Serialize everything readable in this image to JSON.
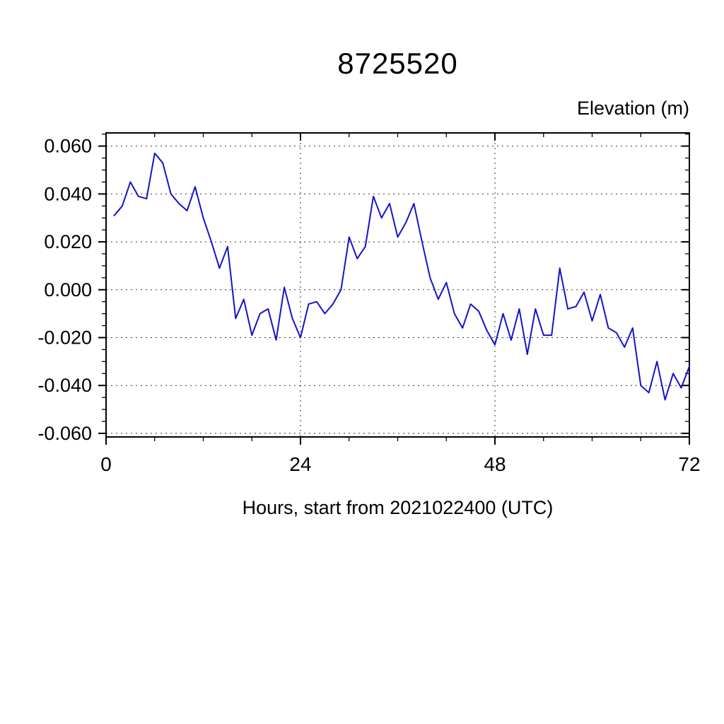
{
  "title": "8725520",
  "y_axis_unit": "Elevation (m)",
  "x_axis_title": "Hours, start from 2021022400 (UTC)",
  "chart_data": {
    "type": "line",
    "title": "8725520",
    "xlabel": "Hours, start from 2021022400 (UTC)",
    "ylabel": "Elevation (m)",
    "xlim": [
      0,
      72
    ],
    "ylim": [
      -0.0615,
      0.0655
    ],
    "grid": "dashed",
    "grid_color": "#000000",
    "grid_x_values": [
      24,
      48
    ],
    "grid_y_values": [
      0.06,
      0.04,
      0.02,
      0.0,
      -0.02,
      -0.04,
      -0.06
    ],
    "xticks": [
      {
        "value": 0,
        "label": "0"
      },
      {
        "value": 24,
        "label": "24"
      },
      {
        "value": 48,
        "label": "48"
      },
      {
        "value": 72,
        "label": "72"
      }
    ],
    "x_minor_step": 6,
    "yticks": [
      {
        "value": 0.06,
        "label": "0.060"
      },
      {
        "value": 0.04,
        "label": "0.040"
      },
      {
        "value": 0.02,
        "label": "0.020"
      },
      {
        "value": 0.0,
        "label": "0.000"
      },
      {
        "value": -0.02,
        "label": "-0.020"
      },
      {
        "value": -0.04,
        "label": "-0.040"
      },
      {
        "value": -0.06,
        "label": "-0.060"
      }
    ],
    "y_minor_step": 0.005,
    "series": [
      {
        "name": "elevation",
        "color": "#1414c8",
        "x": [
          1,
          2,
          3,
          4,
          5,
          6,
          7,
          8,
          9,
          10,
          11,
          12,
          13,
          14,
          15,
          16,
          17,
          18,
          19,
          20,
          21,
          22,
          23,
          24,
          25,
          26,
          27,
          28,
          29,
          30,
          31,
          32,
          33,
          34,
          35,
          36,
          37,
          38,
          39,
          40,
          41,
          42,
          43,
          44,
          45,
          46,
          47,
          48,
          49,
          50,
          51,
          52,
          53,
          54,
          55,
          56,
          57,
          58,
          59,
          60,
          61,
          62,
          63,
          64,
          65,
          66,
          67,
          68,
          69,
          70,
          71,
          72
        ],
        "values": [
          0.031,
          0.035,
          0.045,
          0.039,
          0.038,
          0.057,
          0.053,
          0.04,
          0.036,
          0.033,
          0.043,
          0.03,
          0.02,
          0.009,
          0.018,
          -0.012,
          -0.004,
          -0.019,
          -0.01,
          -0.008,
          -0.021,
          0.001,
          -0.012,
          -0.02,
          -0.006,
          -0.005,
          -0.01,
          -0.006,
          0.0,
          0.022,
          0.013,
          0.018,
          0.039,
          0.03,
          0.036,
          0.022,
          0.028,
          0.036,
          0.02,
          0.005,
          -0.004,
          0.003,
          -0.01,
          -0.016,
          -0.006,
          -0.009,
          -0.017,
          -0.023,
          -0.01,
          -0.021,
          -0.008,
          -0.027,
          -0.008,
          -0.019,
          -0.019,
          0.009,
          -0.008,
          -0.007,
          -0.001,
          -0.013,
          -0.002,
          -0.016,
          -0.018,
          -0.024,
          -0.016,
          -0.04,
          -0.043,
          -0.03,
          -0.046,
          -0.035,
          -0.041,
          -0.032
        ]
      }
    ]
  }
}
